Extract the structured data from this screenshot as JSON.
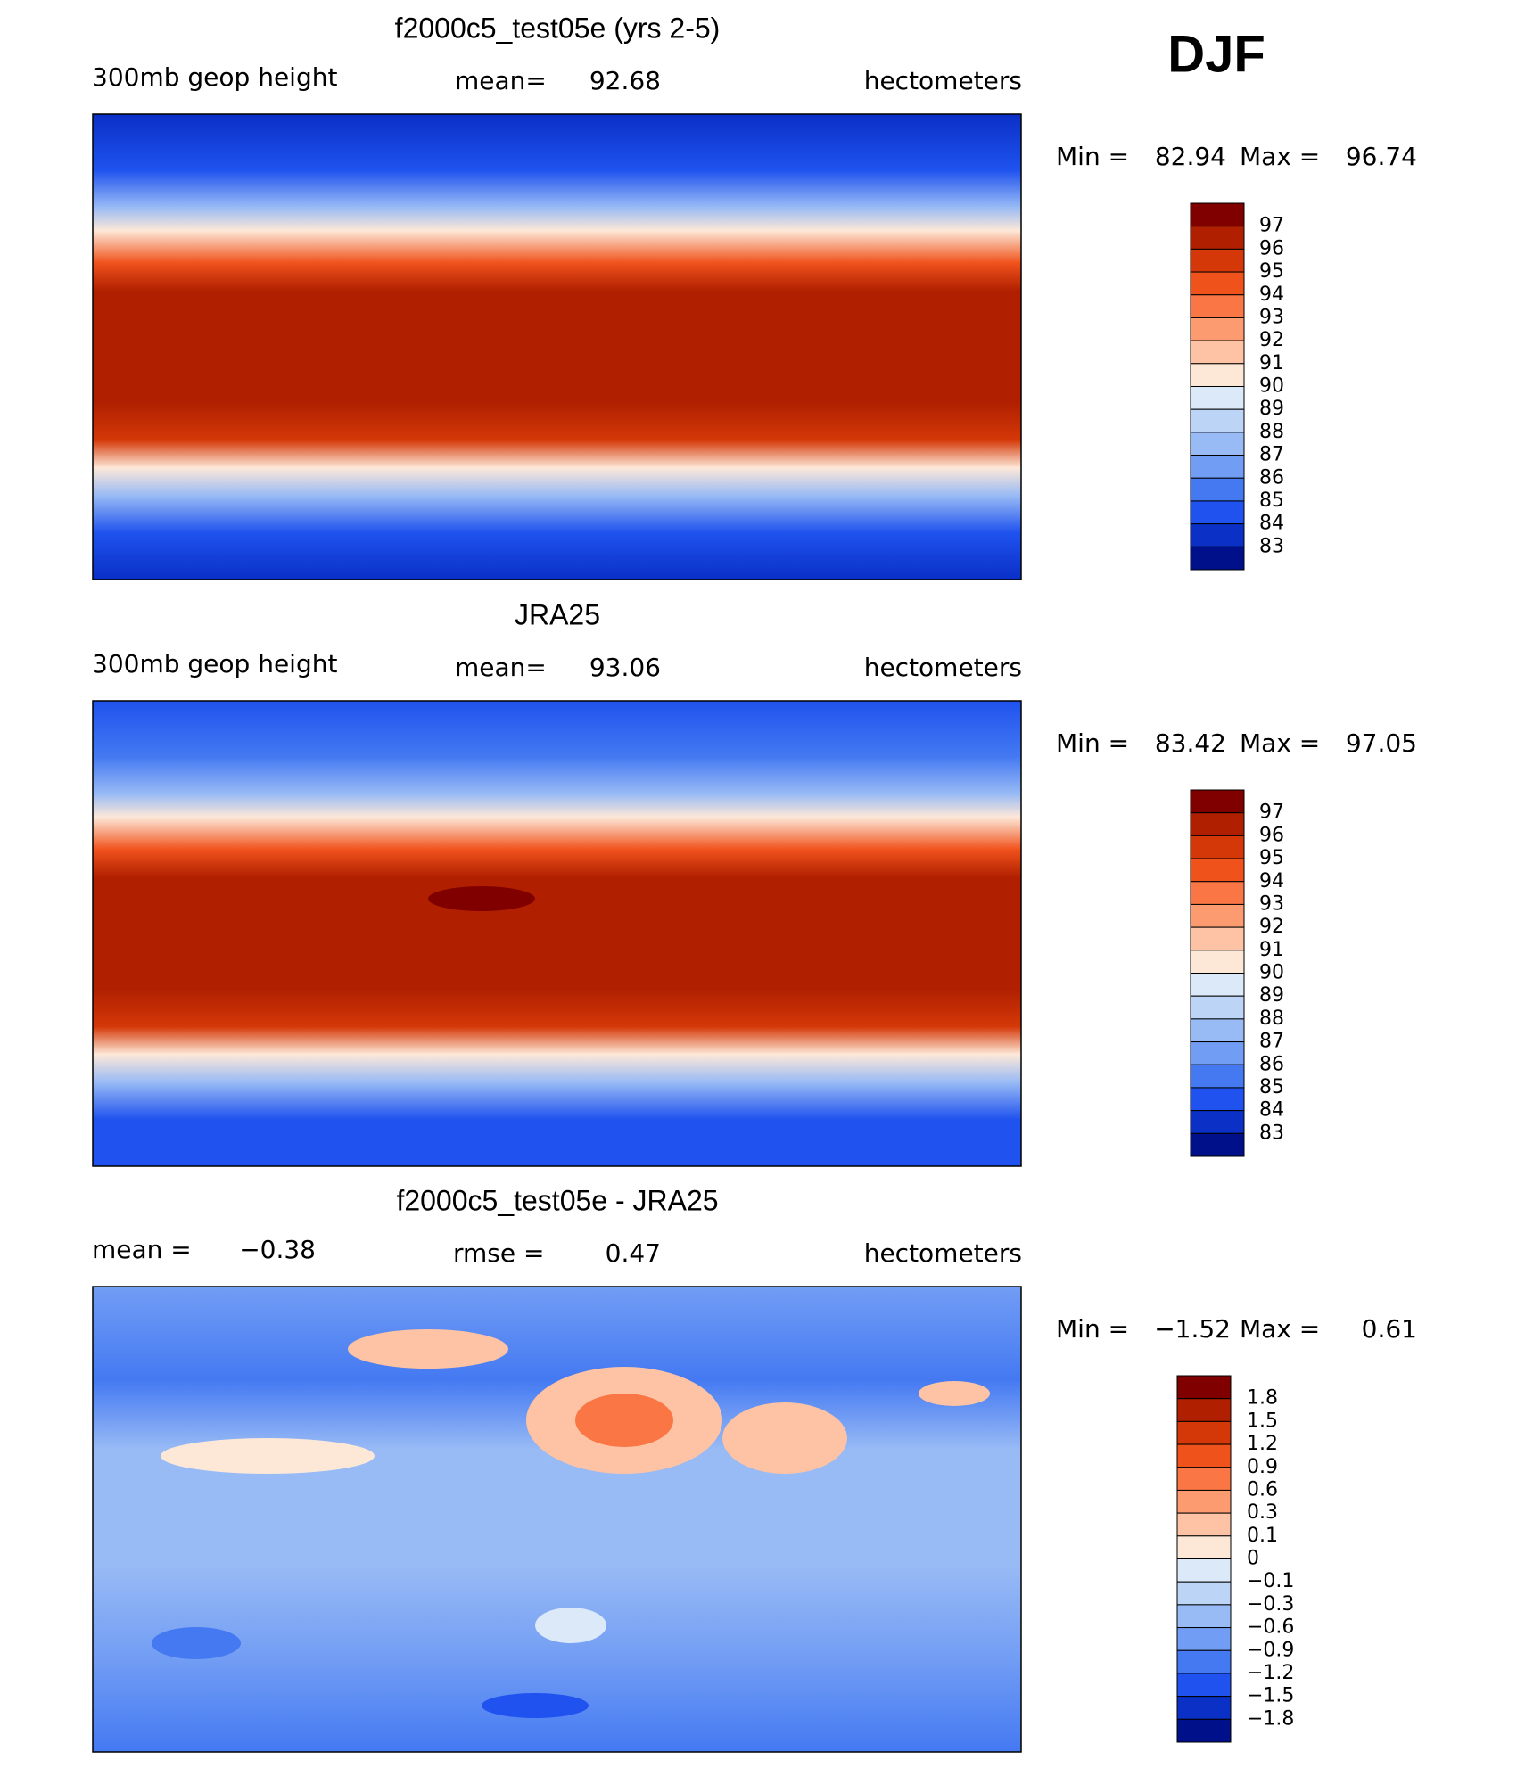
{
  "header": {
    "season": "DJF"
  },
  "panels": [
    {
      "title": "f2000c5_test05e (yrs 2-5)",
      "left_label": "300mb geop height",
      "center_label": "mean=",
      "center_value": "92.68",
      "units": "hectometers",
      "min_label": "Min =",
      "min": "82.94",
      "max_label": "Max =",
      "max": "96.74",
      "colorbar": {
        "labels": [
          "97",
          "96",
          "95",
          "94",
          "93",
          "92",
          "91",
          "90",
          "89",
          "88",
          "87",
          "86",
          "85",
          "84",
          "83"
        ],
        "colors": [
          "#800000",
          "#b02000",
          "#d43808",
          "#f0521c",
          "#fa7644",
          "#fc9a70",
          "#fdc3a4",
          "#fde8d8",
          "#dbe9f9",
          "#bcd4f6",
          "#98baf5",
          "#729df4",
          "#4479f2",
          "#1f52ee",
          "#0a30c6",
          "#00108a"
        ]
      }
    },
    {
      "title": "JRA25",
      "left_label": "300mb geop height",
      "center_label": "mean=",
      "center_value": "93.06",
      "units": "hectometers",
      "min_label": "Min =",
      "min": "83.42",
      "max_label": "Max =",
      "max": "97.05",
      "colorbar": {
        "labels": [
          "97",
          "96",
          "95",
          "94",
          "93",
          "92",
          "91",
          "90",
          "89",
          "88",
          "87",
          "86",
          "85",
          "84",
          "83"
        ],
        "colors": [
          "#800000",
          "#b02000",
          "#d43808",
          "#f0521c",
          "#fa7644",
          "#fc9a70",
          "#fdc3a4",
          "#fde8d8",
          "#dbe9f9",
          "#bcd4f6",
          "#98baf5",
          "#729df4",
          "#4479f2",
          "#1f52ee",
          "#0a30c6",
          "#00108a"
        ]
      }
    },
    {
      "title": "f2000c5_test05e - JRA25",
      "left_label": "mean =",
      "left_value": "−0.38",
      "center_label": "rmse =",
      "center_value": "0.47",
      "units": "hectometers",
      "min_label": "Min =",
      "min": "−1.52",
      "max_label": "Max =",
      "max": "0.61",
      "colorbar": {
        "labels": [
          "1.8",
          "1.5",
          "1.2",
          "0.9",
          "0.6",
          "0.3",
          "0.1",
          "0",
          "−0.1",
          "−0.3",
          "−0.6",
          "−0.9",
          "−1.2",
          "−1.5",
          "−1.8"
        ],
        "colors": [
          "#800000",
          "#b02000",
          "#d43808",
          "#f0521c",
          "#fa7644",
          "#fc9a70",
          "#fdc3a4",
          "#fde8d8",
          "#dbe9f9",
          "#bcd4f6",
          "#98baf5",
          "#729df4",
          "#4479f2",
          "#1f52ee",
          "#0a30c6",
          "#00108a"
        ]
      }
    }
  ]
}
